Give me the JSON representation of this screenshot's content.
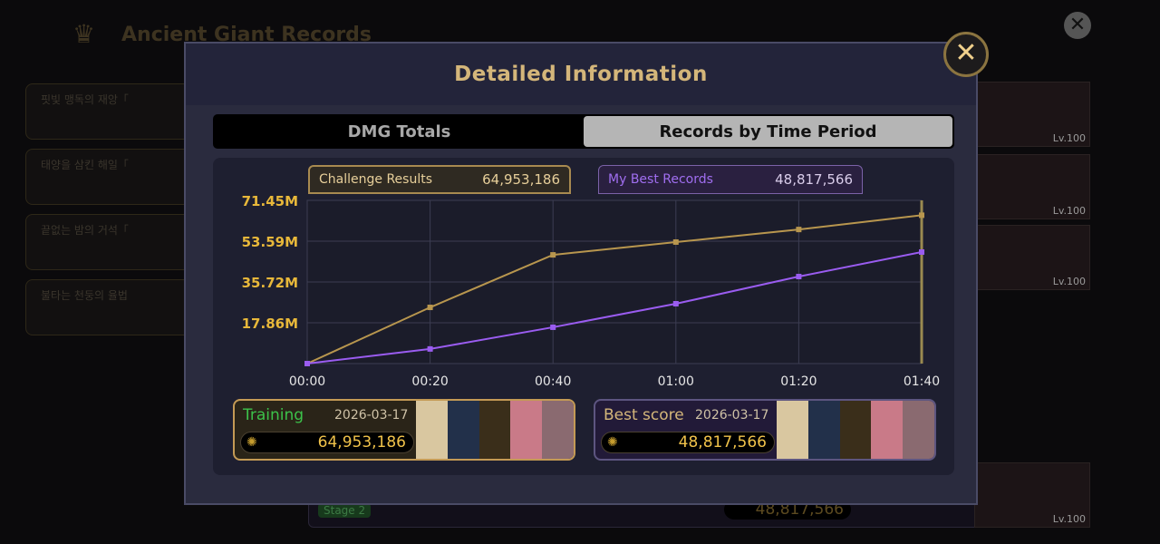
{
  "background": {
    "title": "Ancient Giant Records",
    "cards": [
      "핏빛 맹독의 재앙「",
      "태양을 삼킨 해일「",
      "끝없는 밤의 거석「",
      "불타는 천둥의 율법"
    ],
    "footer_stage": "Stage 2",
    "footer_score": "48,817,566",
    "level_label": "Lv.100"
  },
  "modal": {
    "title": "Detailed Information",
    "tabs": [
      {
        "label": "DMG Totals",
        "active": false
      },
      {
        "label": "Records by Time Period",
        "active": true
      }
    ],
    "legend": [
      {
        "label": "Challenge Results",
        "value": "64,953,186",
        "color": "#c9a050"
      },
      {
        "label": "My Best Records",
        "value": "48,817,566",
        "color": "#9a5cf0"
      }
    ],
    "scores": [
      {
        "label": "Training",
        "date": "2026-03-17",
        "value": "64,953,186",
        "label_color": "#3cc24a"
      },
      {
        "label": "Best score",
        "date": "2026-03-17",
        "value": "48,817,566",
        "label_color": "#d4b67a"
      }
    ]
  },
  "chart_data": {
    "type": "line",
    "x": [
      "00:00",
      "00:20",
      "00:40",
      "01:00",
      "01:20",
      "01:40"
    ],
    "y_ticks": [
      "17.86M",
      "35.72M",
      "53.59M",
      "71.45M"
    ],
    "ylim": [
      0,
      71.45
    ],
    "grid": true,
    "series": [
      {
        "name": "Challenge Results",
        "color": "#b8964e",
        "values": [
          0,
          24.6,
          47.6,
          53.2,
          58.7,
          64.95
        ]
      },
      {
        "name": "My Best Records",
        "color": "#9a5cf0",
        "values": [
          0,
          6.4,
          15.9,
          26.2,
          38.1,
          48.82
        ]
      }
    ]
  }
}
